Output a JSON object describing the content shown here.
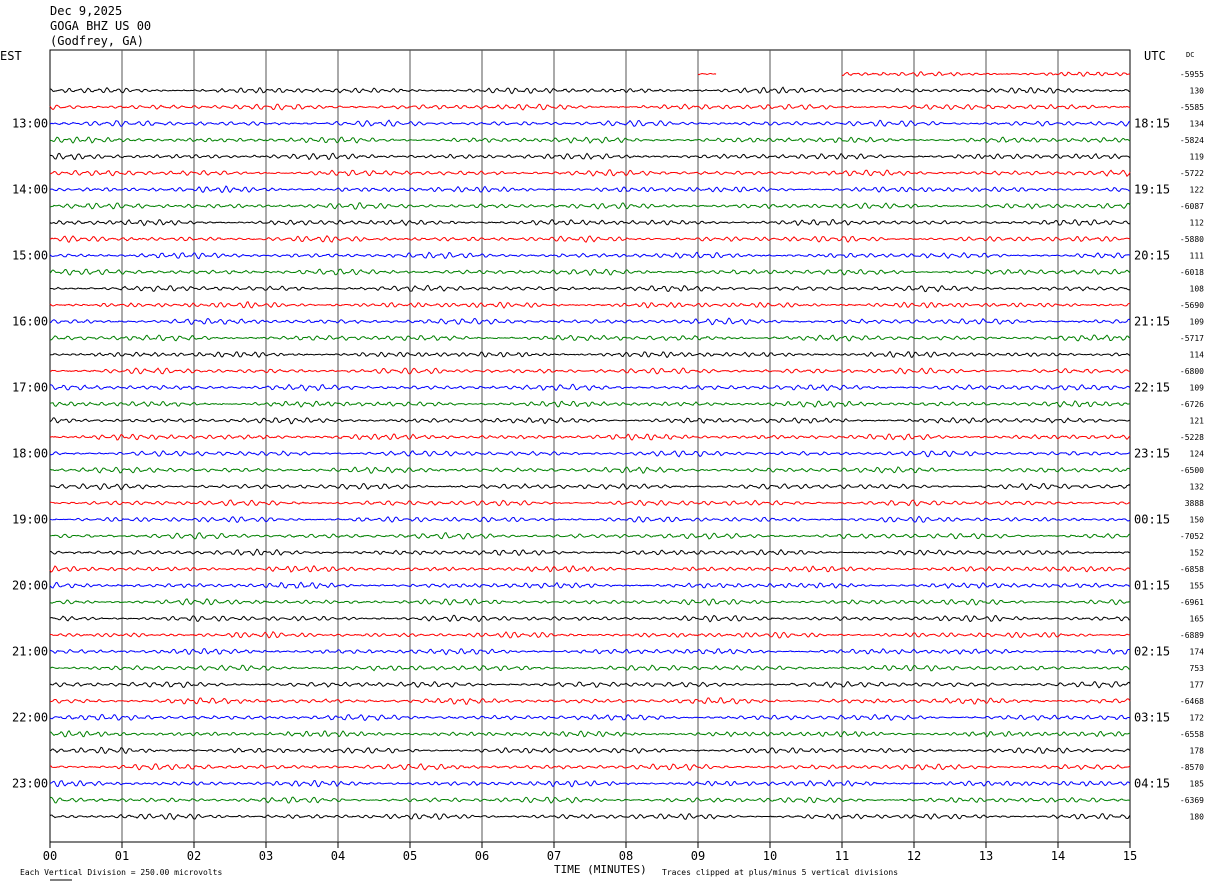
{
  "header": {
    "date": "Dec 9,2025",
    "station": "GOGA BHZ US 00",
    "location": "(Godfrey, GA)",
    "left_zone": "EST",
    "right_zone": "UTC",
    "dc_label": "DC"
  },
  "footer": {
    "scale_note": "Each Vertical Division =  250.00 microvolts",
    "xlabel": "TIME (MINUTES)",
    "clip_note": "Traces clipped at plus/minus 5 vertical divisions"
  },
  "chart_data": {
    "type": "line",
    "title": "",
    "xlabel": "TIME (MINUTES)",
    "ylabel": "",
    "xlim": [
      0,
      15
    ],
    "x_ticks": [
      "00",
      "01",
      "02",
      "03",
      "04",
      "05",
      "06",
      "07",
      "08",
      "09",
      "10",
      "11",
      "12",
      "13",
      "14",
      "15"
    ],
    "grid": true,
    "line_interval_minutes": 15,
    "colors_cycle": [
      "#000000",
      "#ff0000",
      "#0000ff",
      "#008000"
    ],
    "left_hour_labels": [
      "13:00",
      "14:00",
      "15:00",
      "16:00",
      "17:00",
      "18:00",
      "19:00",
      "20:00",
      "21:00",
      "22:00",
      "23:00"
    ],
    "right_hour_labels": [
      "18:15",
      "19:15",
      "20:15",
      "21:15",
      "22:15",
      "23:15",
      "00:15",
      "01:15",
      "02:15",
      "03:15",
      "04:15"
    ],
    "first_trace_row": 1,
    "partial_trace": {
      "row": 1,
      "color": "#ff0000",
      "segments_minutes": [
        [
          9.0,
          9.25
        ],
        [
          11.0,
          15.0
        ]
      ]
    },
    "dc_values": [
      "",
      "-5955",
      "130",
      "-5585",
      "134",
      "-5824",
      "119",
      "-5722",
      "122",
      "-6087",
      "112",
      "-5880",
      "111",
      "-6018",
      "108",
      "-5690",
      "109",
      "-5717",
      "114",
      "-6800",
      "109",
      "-6726",
      "121",
      "-5228",
      "124",
      "-6500",
      "132",
      "3888",
      "150",
      "-7052",
      "152",
      "-6858",
      "155",
      "-6961",
      "165",
      "-6889",
      "174",
      "753",
      "177",
      "-6468",
      "172",
      "-6558",
      "178",
      "-8570",
      "185",
      "-6369",
      "180"
    ]
  }
}
